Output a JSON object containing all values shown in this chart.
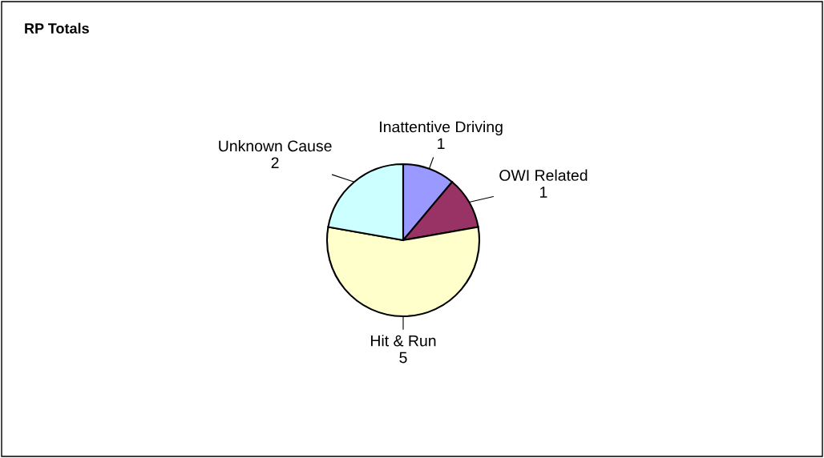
{
  "chart_data": {
    "type": "pie",
    "title": "RP Totals",
    "categories": [
      "Inattentive Driving",
      "OWI Related",
      "Hit & Run",
      "Unknown Cause"
    ],
    "values": [
      1,
      1,
      5,
      2
    ],
    "colors": [
      "#9999ff",
      "#993366",
      "#ffffcc",
      "#ccffff"
    ],
    "data_labels": true
  }
}
